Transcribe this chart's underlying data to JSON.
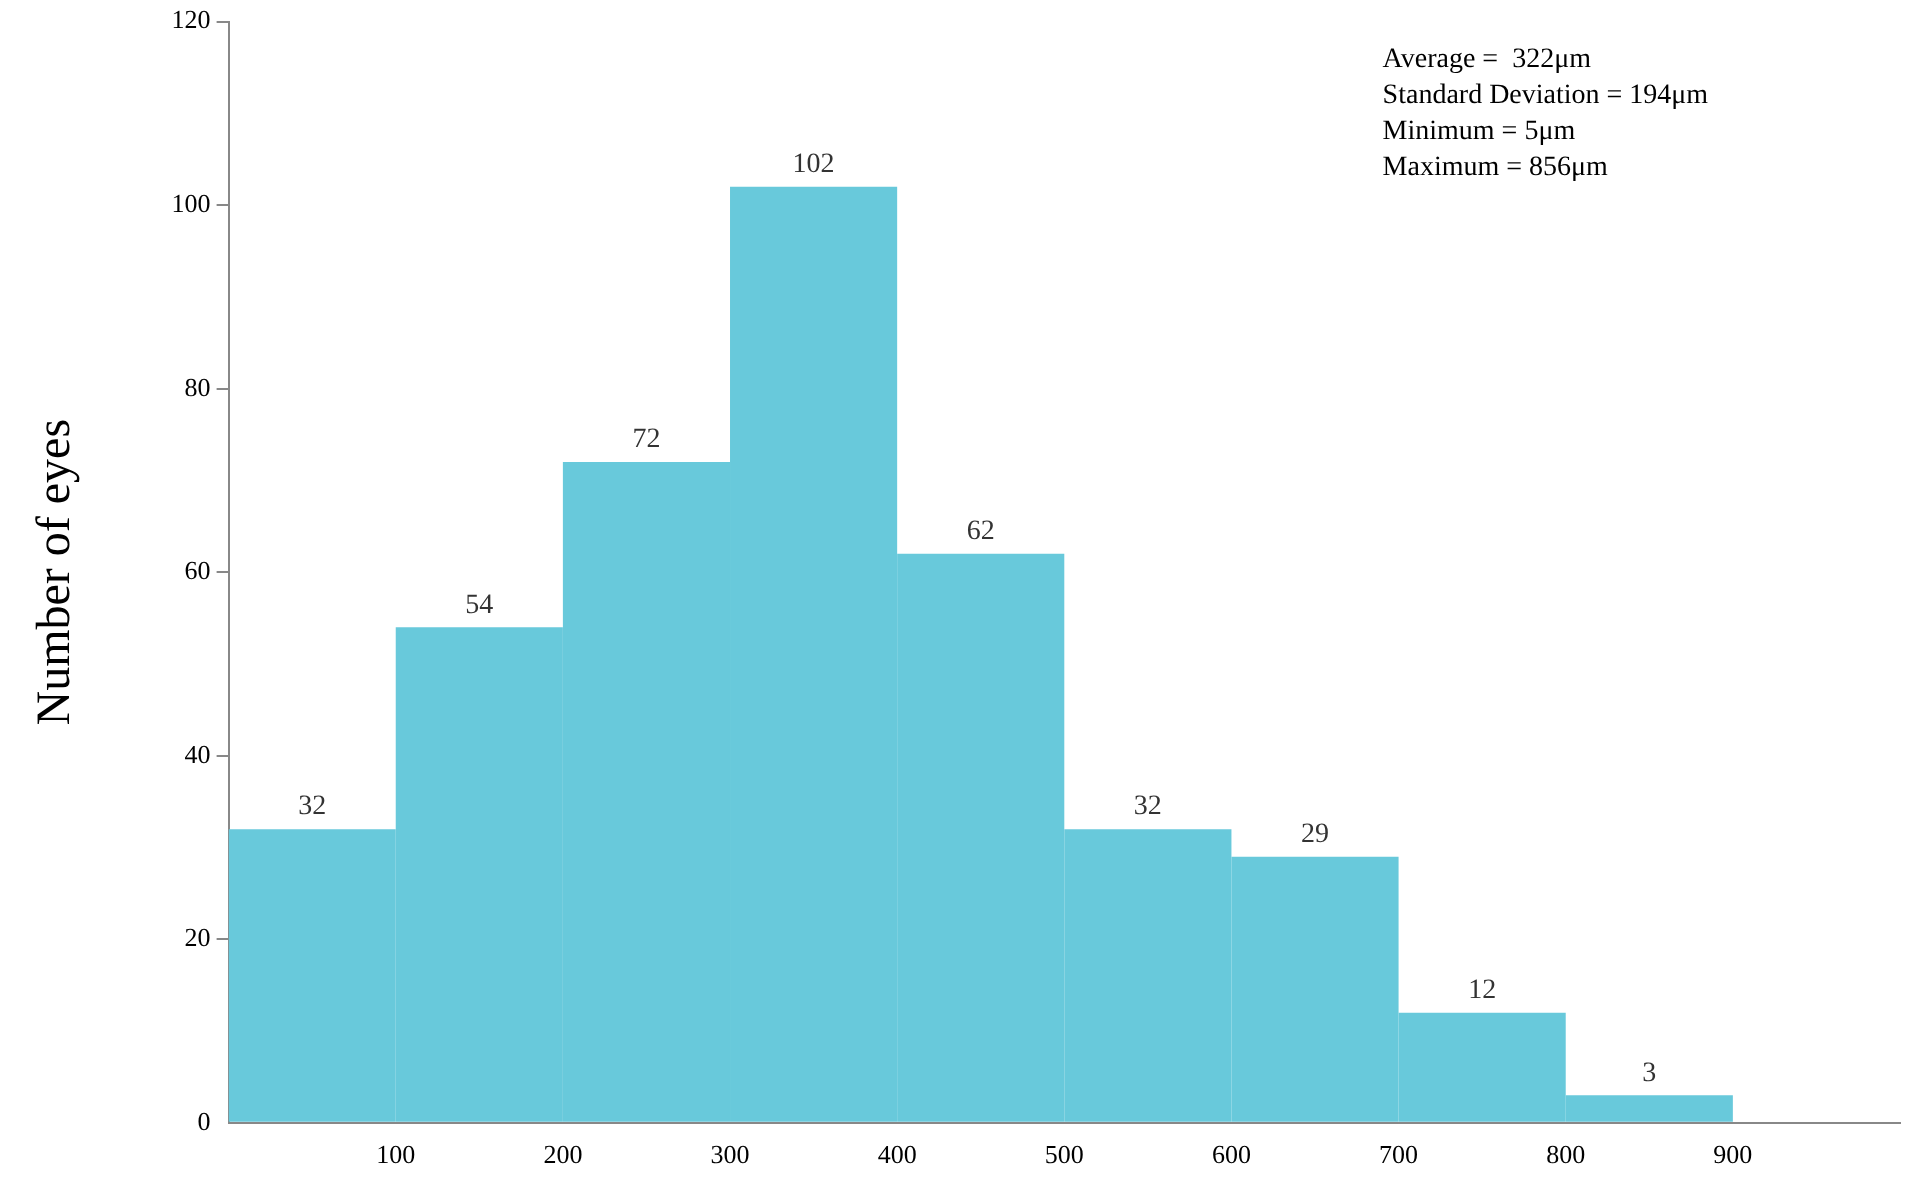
{
  "chart_data": {
    "type": "histogram",
    "ylabel": "Number of eyes",
    "bins": [
      0,
      100,
      200,
      300,
      400,
      500,
      600,
      700,
      800,
      900
    ],
    "values": [
      32,
      54,
      72,
      102,
      62,
      32,
      29,
      12,
      3
    ],
    "color": "#68c9db",
    "xlim": [
      0,
      1000
    ],
    "xticks": [
      100,
      200,
      300,
      400,
      500,
      600,
      700,
      800,
      900
    ],
    "ylim": [
      0,
      120
    ],
    "yticks": [
      0,
      20,
      40,
      60,
      80,
      100,
      120
    ],
    "grid": false,
    "legend": false,
    "data_labels": true,
    "annotations": [
      "Average =  322μm",
      "Standard Deviation = 194μm",
      "Minimum = 5μm",
      "Maximum = 856μm"
    ]
  }
}
